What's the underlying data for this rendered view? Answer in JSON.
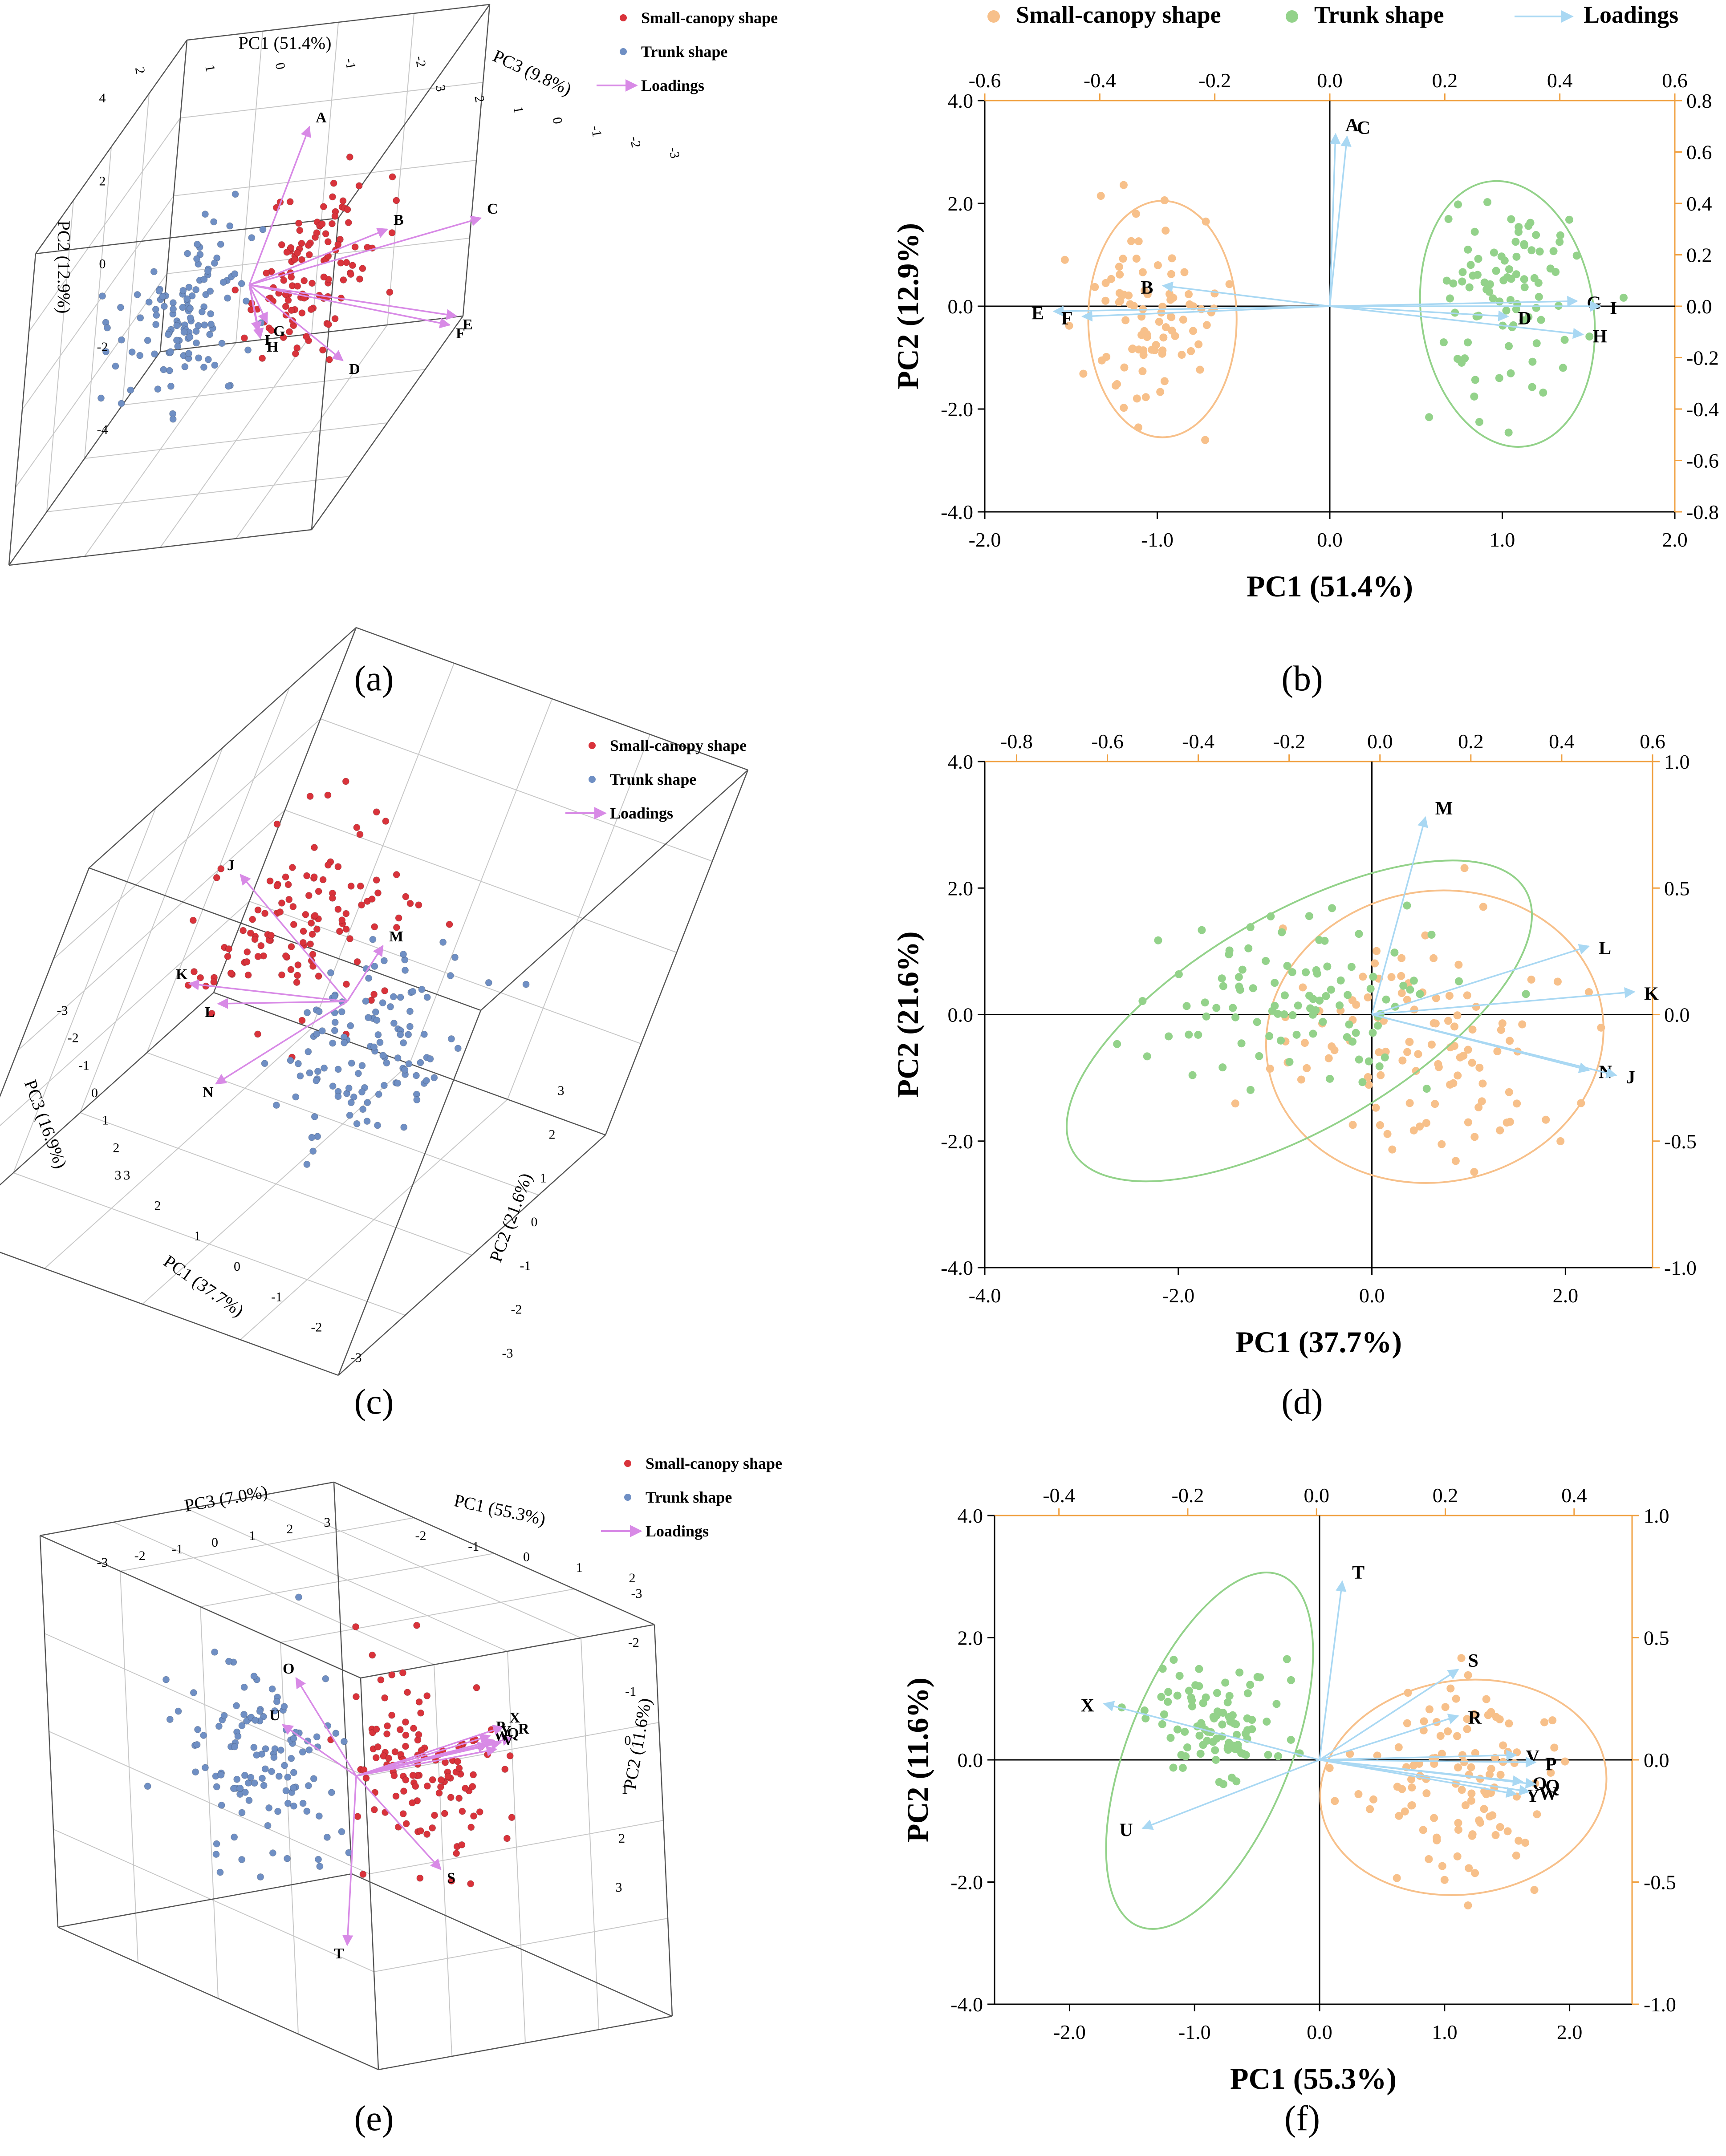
{
  "figure": {
    "captions": [
      "(a)",
      "(b)",
      "(c)",
      "(d)",
      "(e)",
      "(f)"
    ]
  },
  "colors": {
    "small_canopy_2d": "#f7c08a",
    "trunk_2d": "#93d28a",
    "loadings_2d": "#a9d8f3",
    "small_canopy_3d": "#d9333b",
    "trunk_3d": "#6f8fc4",
    "loadings_3d": "#d88ae6",
    "right_axis": "#f0a040",
    "grid_3d": "#c8c8c8"
  },
  "chart_data": [
    {
      "id": "a",
      "type": "scatter",
      "dimension": "3d",
      "legend": {
        "position": "top-right",
        "entries": [
          "Small-canopy shape",
          "Trunk shape",
          "Loadings"
        ]
      },
      "axes": {
        "pc1": {
          "label": "PC1 (51.4%)",
          "ticks": [
            "2",
            "1",
            "0",
            "-1",
            "-2"
          ]
        },
        "pc2": {
          "label": "PC2 (12.9%)",
          "ticks": [
            "4",
            "2",
            "0",
            "-2",
            "-4"
          ]
        },
        "pc3": {
          "label": "PC3 (9.8%)",
          "ticks": [
            "3",
            "2",
            "1",
            "0",
            "-1",
            "-2",
            "-3"
          ]
        }
      },
      "loadings": [
        "A",
        "B",
        "C",
        "D",
        "E",
        "F",
        "G",
        "H",
        "I"
      ]
    },
    {
      "id": "b",
      "type": "scatter",
      "title": "",
      "xlabel": "PC1 (51.4%)",
      "ylabel": "PC2 (12.9%)",
      "xlim": [
        -2.0,
        2.0
      ],
      "ylim": [
        -4.0,
        4.0
      ],
      "xticks": [
        "-2.0",
        "-1.0",
        "0.0",
        "1.0",
        "2.0"
      ],
      "yticks": [
        "-4.0",
        "-2.0",
        "0.0",
        "2.0",
        "4.0"
      ],
      "x2lim": [
        -0.6,
        0.6
      ],
      "y2lim": [
        -0.8,
        0.8
      ],
      "x2ticks": [
        "-0.6",
        "-0.4",
        "-0.2",
        "0.0",
        "0.2",
        "0.4",
        "0.6"
      ],
      "y2ticks": [
        "-0.8",
        "-0.6",
        "-0.4",
        "-0.2",
        "0.0",
        "0.2",
        "0.4",
        "0.6",
        "0.8"
      ],
      "legend": {
        "position": "top",
        "entries": [
          "Small-canopy shape",
          "Trunk shape",
          "Loadings"
        ]
      },
      "series": [
        {
          "name": "Small-canopy shape",
          "center": [
            -1.0,
            -0.3
          ],
          "spread": [
            0.22,
            0.95
          ],
          "n": 90,
          "ellipse": {
            "cx": -0.97,
            "cy": -0.25,
            "rx": 0.43,
            "ry": 2.3,
            "angle": 0
          }
        },
        {
          "name": "Trunk shape",
          "center": [
            1.05,
            0.0
          ],
          "spread": [
            0.22,
            0.95
          ],
          "n": 90,
          "ellipse": {
            "cx": 1.03,
            "cy": -0.15,
            "rx": 0.5,
            "ry": 2.6,
            "angle": -8
          }
        }
      ],
      "loadings": [
        {
          "label": "A",
          "x": 0.01,
          "y": 0.67
        },
        {
          "label": "C",
          "x": 0.03,
          "y": 0.66
        },
        {
          "label": "B",
          "x": -0.29,
          "y": 0.08
        },
        {
          "label": "E",
          "x": -0.48,
          "y": -0.02
        },
        {
          "label": "F",
          "x": -0.43,
          "y": -0.04
        },
        {
          "label": "D",
          "x": 0.31,
          "y": -0.04
        },
        {
          "label": "G",
          "x": 0.43,
          "y": 0.02
        },
        {
          "label": "I",
          "x": 0.47,
          "y": 0.0
        },
        {
          "label": "H",
          "x": 0.44,
          "y": -0.11
        }
      ]
    },
    {
      "id": "c",
      "type": "scatter",
      "dimension": "3d",
      "legend": {
        "position": "top-right",
        "entries": [
          "Small-canopy shape",
          "Trunk shape",
          "Loadings"
        ]
      },
      "axes": {
        "pc1": {
          "label": "PC1 (37.7%)",
          "ticks": [
            "3",
            "2",
            "1",
            "0",
            "-1",
            "-2",
            "-3"
          ]
        },
        "pc2": {
          "label": "PC2 (21.6%)",
          "ticks": [
            "3",
            "2",
            "1",
            "0",
            "-1",
            "-2",
            "-3"
          ]
        },
        "pc3": {
          "label": "PC3 (16.9%)",
          "ticks": [
            "-3",
            "-2",
            "-1",
            "0",
            "1",
            "2",
            "3"
          ]
        }
      },
      "loadings": [
        "J",
        "K",
        "L",
        "M",
        "N"
      ]
    },
    {
      "id": "d",
      "type": "scatter",
      "xlabel": "PC1 (37.7%)",
      "ylabel": "PC2 (21.6%)",
      "xlim": [
        -4.0,
        2.9
      ],
      "ylim": [
        -4.0,
        4.0
      ],
      "xticks": [
        "-4.0",
        "-2.0",
        "0.0",
        "2.0"
      ],
      "yticks": [
        "-4.0",
        "-2.0",
        "0.0",
        "2.0",
        "4.0"
      ],
      "x2lim": [
        -0.87,
        0.6
      ],
      "y2lim": [
        -1.0,
        1.0
      ],
      "x2ticks": [
        "-0.8",
        "-0.6",
        "-0.4",
        "-0.2",
        "0.0",
        "0.2",
        "0.4",
        "0.6"
      ],
      "y2ticks": [
        "-1.0",
        "-0.5",
        "0.0",
        "0.5",
        "1.0"
      ],
      "series": [
        {
          "name": "Small-canopy shape",
          "center": [
            0.6,
            -0.6
          ],
          "spread": [
            0.8,
            0.95
          ],
          "n": 110,
          "ellipse": {
            "cx": 0.65,
            "cy": -0.35,
            "rx": 1.75,
            "ry": 2.3,
            "angle": -10
          }
        },
        {
          "name": "Trunk shape",
          "center": [
            -0.6,
            0.3
          ],
          "spread": [
            0.85,
            0.8
          ],
          "n": 100,
          "ellipse": {
            "cx": -0.75,
            "cy": -0.1,
            "rx": 2.7,
            "ry": 1.7,
            "angle": -30
          }
        }
      ],
      "loadings": [
        {
          "label": "M",
          "x": 0.1,
          "y": 0.78
        },
        {
          "label": "L",
          "x": 0.46,
          "y": 0.27
        },
        {
          "label": "K",
          "x": 0.56,
          "y": 0.09
        },
        {
          "label": "N",
          "x": 0.46,
          "y": -0.22
        },
        {
          "label": "J",
          "x": 0.52,
          "y": -0.24
        }
      ]
    },
    {
      "id": "e",
      "type": "scatter",
      "dimension": "3d",
      "legend": {
        "position": "top-right",
        "entries": [
          "Small-canopy shape",
          "Trunk shape",
          "Loadings"
        ]
      },
      "axes": {
        "pc1": {
          "label": "PC1 (55.3%)",
          "ticks": [
            "-2",
            "-1",
            "0",
            "1",
            "2"
          ]
        },
        "pc2": {
          "label": "PC2 (11.6%)",
          "ticks": [
            "-3",
            "-2",
            "-1",
            "0",
            "1",
            "2",
            "3"
          ]
        },
        "pc3": {
          "label": "PC3 (7.0%)",
          "ticks": [
            "-3",
            "-2",
            "-1",
            "0",
            "1",
            "2",
            "3"
          ]
        }
      },
      "loadings": [
        "O",
        "P",
        "Q",
        "R",
        "S",
        "T",
        "U",
        "V",
        "W",
        "X",
        "Y"
      ]
    },
    {
      "id": "f",
      "type": "scatter",
      "xlabel": "PC1 (55.3%)",
      "ylabel": "PC2 (11.6%)",
      "xlim": [
        -2.6,
        2.5
      ],
      "ylim": [
        -4.0,
        4.0
      ],
      "xticks": [
        "-2.0",
        "-1.0",
        "0.0",
        "1.0",
        "2.0"
      ],
      "yticks": [
        "-4.0",
        "-2.0",
        "0.0",
        "2.0",
        "4.0"
      ],
      "x2lim": [
        -0.5,
        0.49
      ],
      "y2lim": [
        -1.0,
        1.0
      ],
      "x2ticks": [
        "-0.4",
        "-0.2",
        "0.0",
        "0.2",
        "0.4"
      ],
      "y2ticks": [
        "-1.0",
        "-0.5",
        "0.0",
        "0.5",
        "1.0"
      ],
      "series": [
        {
          "name": "Small-canopy shape",
          "center": [
            1.1,
            -0.3
          ],
          "spread": [
            0.45,
            0.8
          ],
          "n": 110,
          "ellipse": {
            "cx": 1.15,
            "cy": -0.45,
            "rx": 1.15,
            "ry": 1.75,
            "angle": -8
          }
        },
        {
          "name": "Trunk shape",
          "center": [
            -0.8,
            0.6
          ],
          "spread": [
            0.3,
            0.55
          ],
          "n": 95,
          "ellipse": {
            "cx": -0.88,
            "cy": 0.15,
            "rx": 0.65,
            "ry": 3.1,
            "angle": 22
          }
        }
      ],
      "loadings": [
        {
          "label": "T",
          "x": 0.04,
          "y": 0.73
        },
        {
          "label": "S",
          "x": 0.22,
          "y": 0.37
        },
        {
          "label": "R",
          "x": 0.22,
          "y": 0.18
        },
        {
          "label": "X",
          "x": -0.33,
          "y": 0.23
        },
        {
          "label": "U",
          "x": -0.27,
          "y": -0.28
        },
        {
          "label": "V",
          "x": 0.31,
          "y": 0.02
        },
        {
          "label": "P",
          "x": 0.34,
          "y": -0.01
        },
        {
          "label": "O",
          "x": 0.32,
          "y": -0.09
        },
        {
          "label": "Q",
          "x": 0.34,
          "y": -0.1
        },
        {
          "label": "Y",
          "x": 0.31,
          "y": -0.14
        },
        {
          "label": "W",
          "x": 0.33,
          "y": -0.13
        }
      ]
    }
  ]
}
